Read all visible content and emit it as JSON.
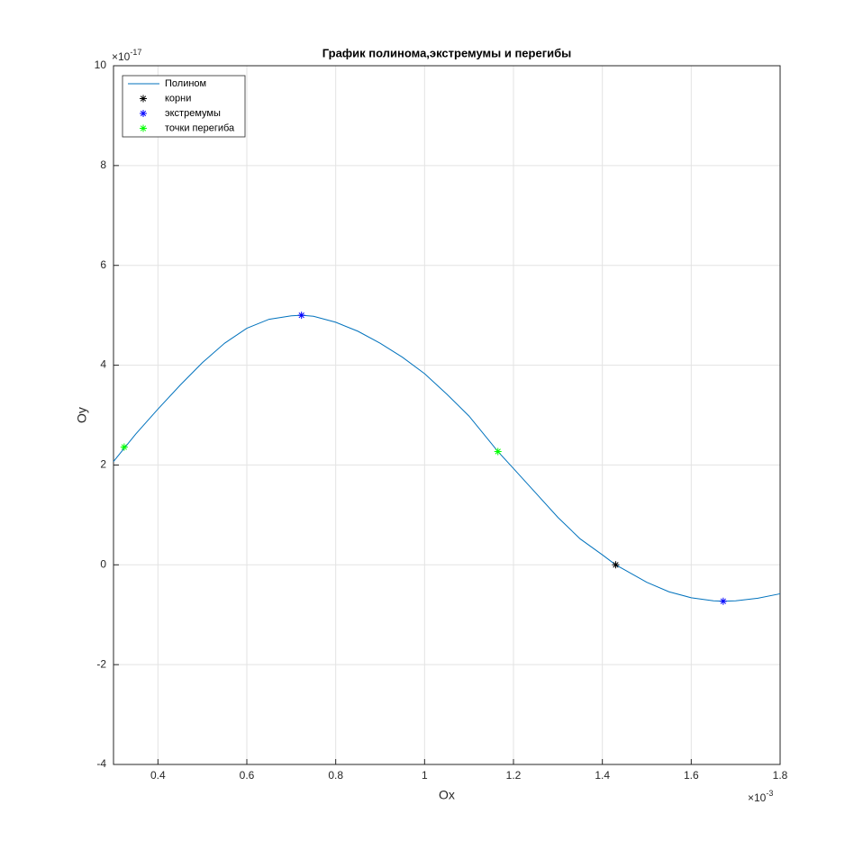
{
  "chart_data": {
    "type": "line",
    "title": "График полинома,экстремумы и перегибы",
    "x_label": "Ox",
    "y_label": "Oy",
    "x_multiplier": {
      "base": "×10",
      "exponent": "-3"
    },
    "y_multiplier": {
      "base": "×10",
      "exponent": "-17"
    },
    "xlim": [
      0.3,
      1.8
    ],
    "ylim": [
      -4,
      10
    ],
    "xticks": [
      0.4,
      0.6,
      0.8,
      1,
      1.2,
      1.4,
      1.6,
      1.8
    ],
    "yticks": [
      -4,
      -2,
      0,
      2,
      4,
      6,
      8,
      10
    ],
    "grid": true,
    "legend": "top-left",
    "series": [
      {
        "name": "Полином",
        "color": "#0072bd",
        "style": "line",
        "x": [
          0.3,
          0.35,
          0.4,
          0.45,
          0.5,
          0.55,
          0.6,
          0.65,
          0.7,
          0.723,
          0.75,
          0.8,
          0.85,
          0.9,
          0.95,
          1.0,
          1.05,
          1.1,
          1.165,
          1.2,
          1.25,
          1.3,
          1.35,
          1.4,
          1.43,
          1.45,
          1.5,
          1.55,
          1.6,
          1.65,
          1.672,
          1.7,
          1.75,
          1.8
        ],
        "values": [
          2.07,
          2.62,
          3.12,
          3.6,
          4.05,
          4.44,
          4.74,
          4.92,
          4.99,
          5.0,
          4.98,
          4.86,
          4.68,
          4.44,
          4.16,
          3.83,
          3.42,
          2.98,
          2.27,
          1.93,
          1.44,
          0.95,
          0.52,
          0.2,
          0.0,
          -0.1,
          -0.35,
          -0.54,
          -0.66,
          -0.72,
          -0.73,
          -0.72,
          -0.67,
          -0.58
        ]
      },
      {
        "name": "корни",
        "color": "#000000",
        "style": "marker",
        "x": [
          1.43
        ],
        "values": [
          0.0
        ]
      },
      {
        "name": "экстремумы",
        "color": "#0000ff",
        "style": "marker",
        "x": [
          0.723,
          1.672
        ],
        "values": [
          5.0,
          -0.73
        ]
      },
      {
        "name": "точки перегиба",
        "color": "#00ff00",
        "style": "marker",
        "x": [
          0.324,
          1.165
        ],
        "values": [
          2.36,
          2.27
        ]
      }
    ]
  }
}
